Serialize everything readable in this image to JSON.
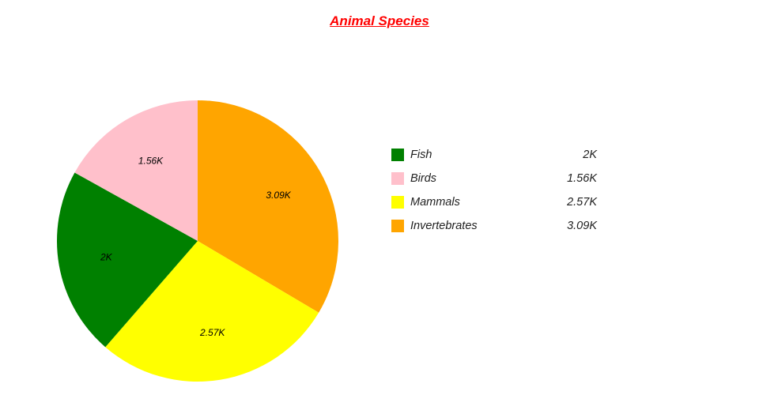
{
  "title": "Animal Species",
  "chart_data": {
    "type": "pie",
    "title": "Animal Species",
    "title_color": "#ff0000",
    "categories": [
      "Fish",
      "Birds",
      "Mammals",
      "Invertebrates"
    ],
    "values": [
      2000,
      1560,
      2570,
      3090
    ],
    "value_labels": [
      "2K",
      "1.56K",
      "2.57K",
      "3.09K"
    ],
    "colors": [
      "#008000",
      "#ffc0cb",
      "#ffff00",
      "#ffa500"
    ],
    "legend_position": "right",
    "slice_order_clockwise_from_top": [
      "Invertebrates",
      "Mammals",
      "Fish",
      "Birds"
    ]
  },
  "legend": {
    "items": [
      {
        "label": "Fish",
        "value": "2K",
        "color": "#008000"
      },
      {
        "label": "Birds",
        "value": "1.56K",
        "color": "#ffc0cb"
      },
      {
        "label": "Mammals",
        "value": "2.57K",
        "color": "#ffff00"
      },
      {
        "label": "Invertebrates",
        "value": "3.09K",
        "color": "#ffa500"
      }
    ]
  }
}
